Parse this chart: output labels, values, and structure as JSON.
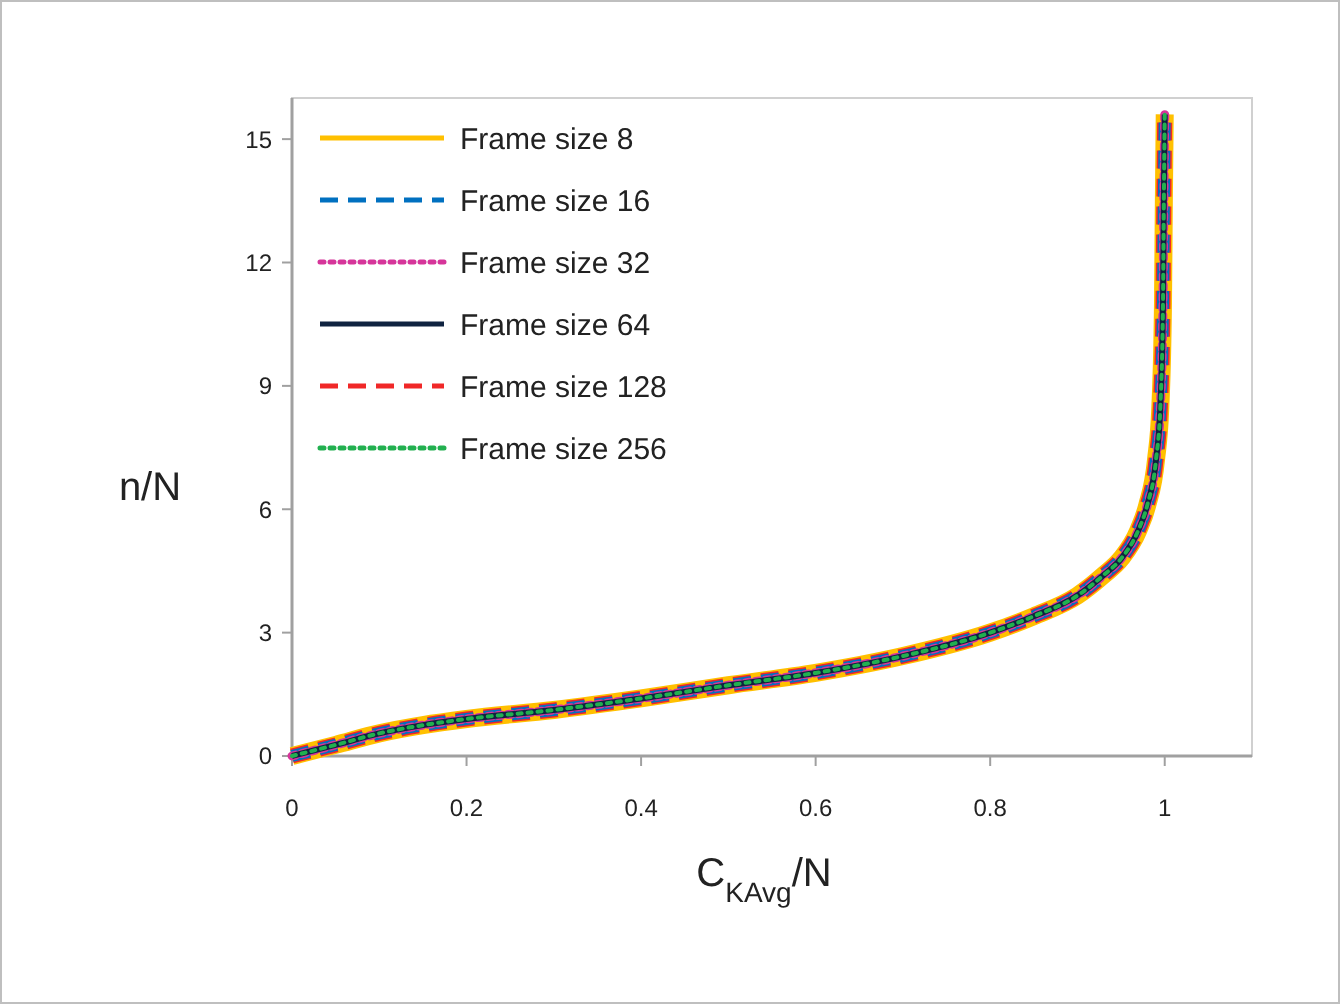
{
  "chart_data": {
    "type": "line",
    "xlabel": "C$_{KAvg}$/N",
    "ylabel": "n/N",
    "xlim": [
      0,
      1.1
    ],
    "xticks": [
      0,
      0.2,
      0.4,
      0.6,
      0.8,
      1
    ],
    "ylim": [
      0,
      16
    ],
    "yticks": [
      0,
      3,
      6,
      9,
      12,
      15
    ],
    "grid": false,
    "legend": "top left",
    "marker": "none",
    "x": [
      0,
      0.05,
      0.1,
      0.15,
      0.2,
      0.3,
      0.4,
      0.5,
      0.6,
      0.7,
      0.8,
      0.85,
      0.9,
      0.93,
      0.95,
      0.97,
      0.98,
      0.99,
      0.995,
      0.998,
      0.999,
      1
    ],
    "series": [
      {
        "name": "Frame size 8",
        "color": "#ffc000",
        "line_style": "solid",
        "values": [
          0,
          0.27,
          0.55,
          0.75,
          0.9,
          1.12,
          1.4,
          1.72,
          2.02,
          2.43,
          3.0,
          3.4,
          3.9,
          4.4,
          4.8,
          5.5,
          6.1,
          7.2,
          8.5,
          11,
          13.5,
          15.6
        ]
      },
      {
        "name": "Frame size 16",
        "color": "#0070c0",
        "line_style": "dashed",
        "values": [
          0,
          0.27,
          0.55,
          0.75,
          0.9,
          1.12,
          1.4,
          1.72,
          2.02,
          2.43,
          3.0,
          3.4,
          3.9,
          4.4,
          4.8,
          5.5,
          6.1,
          7.2,
          8.5,
          11,
          13.5,
          15.6
        ]
      },
      {
        "name": "Frame size 32",
        "color": "#d6359a",
        "line_style": "dotted",
        "values": [
          0,
          0.27,
          0.55,
          0.75,
          0.9,
          1.12,
          1.4,
          1.72,
          2.02,
          2.43,
          3.0,
          3.4,
          3.9,
          4.4,
          4.8,
          5.5,
          6.1,
          7.2,
          8.5,
          11,
          13.5,
          15.6
        ]
      },
      {
        "name": "Frame size 64",
        "color": "#0f2340",
        "line_style": "solid",
        "values": [
          0,
          0.27,
          0.55,
          0.75,
          0.9,
          1.12,
          1.4,
          1.72,
          2.02,
          2.43,
          3.0,
          3.4,
          3.9,
          4.4,
          4.8,
          5.5,
          6.1,
          7.2,
          8.5,
          11,
          13.5,
          15.6
        ]
      },
      {
        "name": "Frame size 128",
        "color": "#f02828",
        "line_style": "dashed",
        "values": [
          0,
          0.27,
          0.55,
          0.75,
          0.9,
          1.12,
          1.4,
          1.72,
          2.02,
          2.43,
          3.0,
          3.4,
          3.9,
          4.4,
          4.8,
          5.5,
          6.1,
          7.2,
          8.5,
          11,
          13.5,
          15.6
        ]
      },
      {
        "name": "Frame size 256",
        "color": "#22b050",
        "line_style": "dotted",
        "values": [
          0,
          0.27,
          0.55,
          0.75,
          0.9,
          1.12,
          1.4,
          1.72,
          2.02,
          2.43,
          3.0,
          3.4,
          3.9,
          4.4,
          4.8,
          5.5,
          6.1,
          7.2,
          8.5,
          11,
          13.5,
          15.6
        ]
      }
    ]
  }
}
